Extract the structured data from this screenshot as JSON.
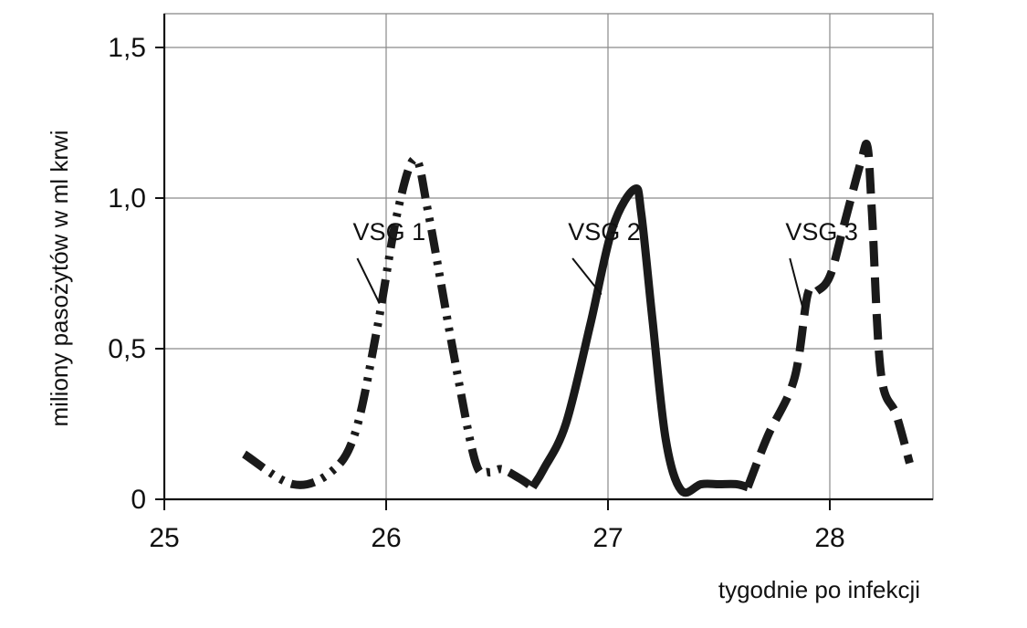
{
  "chart_data": {
    "type": "line",
    "title": "",
    "xlabel": "tygodnie po infekcji",
    "ylabel": "miliony  pasożytów w ml krwi",
    "xlim": [
      25,
      28.5
    ],
    "ylim": [
      0,
      1.6
    ],
    "x_ticks": [
      25,
      26,
      27,
      28
    ],
    "x_tick_labels": [
      "25",
      "26",
      "27",
      "28"
    ],
    "y_ticks": [
      0,
      0.5,
      1.0,
      1.5
    ],
    "y_tick_labels": [
      "0",
      "0,5",
      "1,0",
      "1,5"
    ],
    "grid": true,
    "series": [
      {
        "name": "VSG 1",
        "dash": "dash-dot-dot",
        "x": [
          25.36,
          25.58,
          25.75,
          25.86,
          25.96,
          26.05,
          26.13,
          26.19,
          26.3,
          26.4,
          26.46,
          26.52,
          26.6,
          26.66
        ],
        "y": [
          0.15,
          0.05,
          0.09,
          0.22,
          0.57,
          0.95,
          1.13,
          0.95,
          0.5,
          0.13,
          0.09,
          0.1,
          0.07,
          0.04
        ]
      },
      {
        "name": "VSG 2",
        "dash": "solid",
        "x": [
          26.66,
          26.71,
          26.81,
          26.92,
          27.02,
          27.12,
          27.15,
          27.2,
          27.26,
          27.33,
          27.42,
          27.5,
          27.58,
          27.63
        ],
        "y": [
          0.04,
          0.1,
          0.25,
          0.58,
          0.9,
          1.03,
          0.95,
          0.6,
          0.2,
          0.03,
          0.05,
          0.05,
          0.05,
          0.04
        ]
      },
      {
        "name": "VSG 3",
        "dash": "dashed",
        "x": [
          27.63,
          27.72,
          27.84,
          27.9,
          27.94,
          28.0,
          28.06,
          28.14,
          28.17,
          28.19,
          28.23,
          28.3,
          28.36
        ],
        "y": [
          0.04,
          0.21,
          0.4,
          0.68,
          0.69,
          0.74,
          0.9,
          1.12,
          1.17,
          0.95,
          0.42,
          0.28,
          0.12
        ]
      }
    ],
    "annotations": [
      {
        "text": "VSG 1",
        "series": "VSG 1",
        "label_x": 25.85,
        "label_y": 0.86,
        "leader_start": [
          25.87,
          0.8
        ],
        "leader_end": [
          25.97,
          0.65
        ]
      },
      {
        "text": "VSG 2",
        "series": "VSG 2",
        "label_x": 26.82,
        "label_y": 0.86,
        "leader_start": [
          26.84,
          0.8
        ],
        "leader_end": [
          26.97,
          0.68
        ]
      },
      {
        "text": "VSG 3",
        "series": "VSG 3",
        "label_x": 27.8,
        "label_y": 0.86,
        "leader_start": [
          27.82,
          0.8
        ],
        "leader_end": [
          27.88,
          0.63
        ]
      }
    ]
  }
}
